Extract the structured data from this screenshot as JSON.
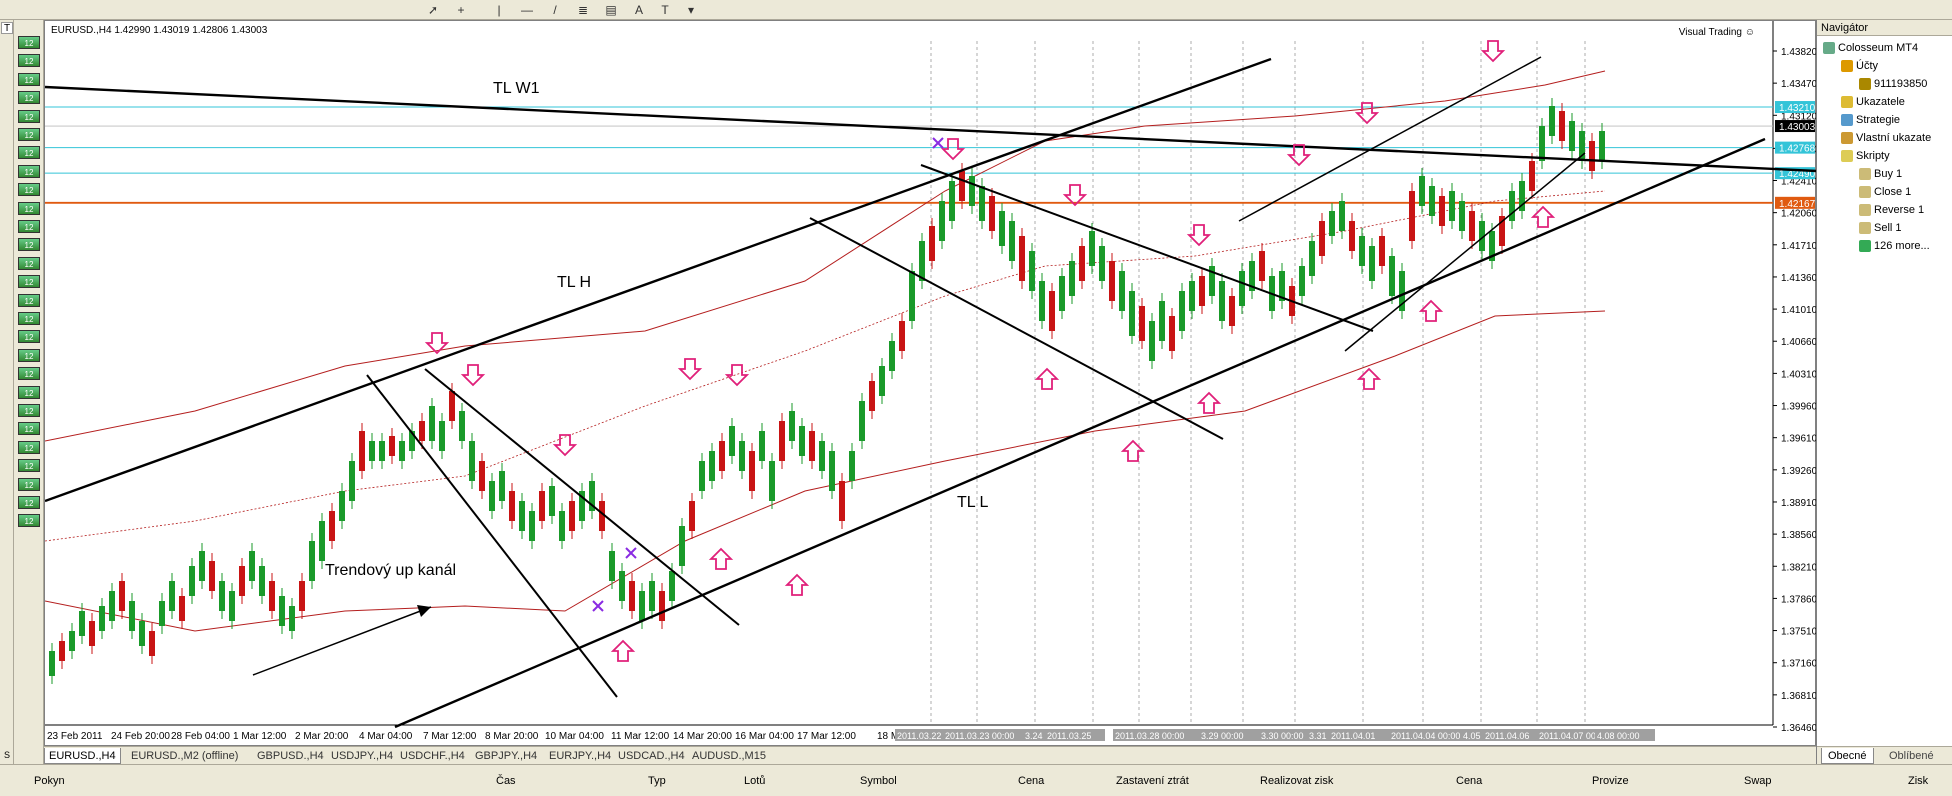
{
  "toolbar": {
    "tools": [
      "cursor-icon",
      "crosshair-icon",
      "vertical-line-icon",
      "horizontal-line-icon",
      "trendline-icon",
      "fibonacci-icon",
      "channel-icon",
      "text-icon",
      "label-icon",
      "arrow-dropdown-icon"
    ],
    "text_tool_label": "A",
    "label_tool_label": "T"
  },
  "left_bar": {
    "top_label": "T",
    "bottom_label": "S"
  },
  "chart": {
    "title": "EURUSD.,H4  1.42990 1.43019 1.42806 1.43003",
    "visual_trading": "Visual Trading",
    "annotations": {
      "tlw1": "TL W1",
      "tlh": "TL H",
      "tll": "TL L",
      "channel": "Trendový up kanál"
    },
    "price_labels": [
      "1.43820",
      "1.43470",
      "1.43120",
      "1.42760",
      "1.42410",
      "1.42060",
      "1.41710",
      "1.41360",
      "1.41010",
      "1.40660",
      "1.40310",
      "1.39960",
      "1.39610",
      "1.39260",
      "1.38910",
      "1.38560",
      "1.38210",
      "1.37860",
      "1.37510",
      "1.37160",
      "1.36810",
      "1.36460"
    ],
    "highlight_prices": {
      "p1": "1.43210",
      "p2": "1.43003",
      "p3": "1.42768",
      "p4": "1.42490",
      "p5": "1.42167"
    },
    "time_labels": [
      "23 Feb 2011",
      "24 Feb 20:00",
      "28 Feb 04:00",
      "1 Mar 12:00",
      "2 Mar 20:00",
      "4 Mar 04:00",
      "7 Mar 12:00",
      "8 Mar 20:00",
      "10 Mar 04:00",
      "11 Mar 12:00",
      "14 Mar 20:00",
      "16 Mar 04:00",
      "17 Mar 12:00",
      "18 M"
    ],
    "time_labels_dates": [
      "2011.03.22",
      "2011.03.23 00:00",
      "3.24",
      "2011.03.25",
      "2011.03.28 00:00",
      "3.29 00:00",
      "3.30 00:00",
      "3.31",
      "2011.04.01",
      "2011.04.04 00:00",
      "4.05",
      "2011.04.06",
      "2011.04.07 00:00",
      "4.08 00:00"
    ]
  },
  "tabs": [
    "EURUSD.,H4",
    "EURUSD.,M2 (offline)",
    "GBPUSD.,H4",
    "USDJPY.,H4",
    "USDCHF.,H4",
    "GBPJPY.,H4",
    "EURJPY.,H4",
    "USDCAD.,H4",
    "AUDUSD.,M15"
  ],
  "navigator": {
    "title": "Navigátor",
    "items": [
      {
        "label": "Colosseum MT4",
        "icon": "computer-icon",
        "indent": 0
      },
      {
        "label": "Účty",
        "icon": "accounts-icon",
        "indent": 1
      },
      {
        "label": "911193850",
        "icon": "account-icon",
        "indent": 2
      },
      {
        "label": "Ukazatele",
        "icon": "indicators-icon",
        "indent": 1
      },
      {
        "label": "Strategie",
        "icon": "experts-icon",
        "indent": 1
      },
      {
        "label": "Vlastní ukazate",
        "icon": "custom-indicators-icon",
        "indent": 1
      },
      {
        "label": "Skripty",
        "icon": "scripts-icon",
        "indent": 1
      },
      {
        "label": "Buy 1",
        "icon": "script-icon",
        "indent": 2
      },
      {
        "label": "Close 1",
        "icon": "script-icon",
        "indent": 2
      },
      {
        "label": "Reverse 1",
        "icon": "script-icon",
        "indent": 2
      },
      {
        "label": "Sell 1",
        "icon": "script-icon",
        "indent": 2
      },
      {
        "label": "126 more...",
        "icon": "globe-icon",
        "indent": 2
      }
    ],
    "tab_common": "Obecné",
    "tab_favorites": "Oblíbené"
  },
  "terminal": {
    "columns": [
      "Pokyn",
      "Čas",
      "Typ",
      "Lotů",
      "Symbol",
      "Cena",
      "Zastavení ztrát",
      "Realizovat zisk",
      "Cena",
      "Provize",
      "Swap",
      "Zisk"
    ]
  }
}
